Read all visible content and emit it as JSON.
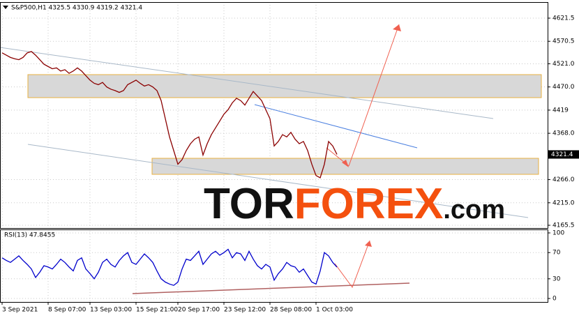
{
  "chart_data": [
    {
      "type": "line",
      "title": "S&P500,H1  4325.5 4330.9 4319.2 4321.4",
      "series": [
        {
          "name": "S&P500",
          "color": "#8b0000",
          "values": [
            4545,
            4540,
            4535,
            4532,
            4530,
            4535,
            4545,
            4548,
            4540,
            4530,
            4520,
            4515,
            4510,
            4512,
            4505,
            4508,
            4500,
            4505,
            4512,
            4505,
            4495,
            4485,
            4478,
            4475,
            4480,
            4470,
            4465,
            4462,
            4458,
            4462,
            4475,
            4480,
            4485,
            4478,
            4472,
            4475,
            4470,
            4462,
            4440,
            4400,
            4360,
            4330,
            4300,
            4310,
            4330,
            4345,
            4355,
            4360,
            4320,
            4345,
            4365,
            4380,
            4395,
            4410,
            4420,
            4435,
            4445,
            4440,
            4430,
            4445,
            4460,
            4450,
            4440,
            4420,
            4400,
            4340,
            4350,
            4365,
            4360,
            4370,
            4355,
            4345,
            4350,
            4330,
            4300,
            4275,
            4270,
            4300,
            4350,
            4340,
            4321.4
          ]
        }
      ],
      "ylim": [
        4159.4,
        4656.8
      ],
      "yticks": [
        4621.5,
        4570.5,
        {
          "value": 4521,
          "label": "4521.0"
        },
        {
          "value": 4470,
          "label": "4470.0"
        },
        4419,
        {
          "value": 4368,
          "label": "4368.0"
        },
        {
          "value": 4266,
          "label": "4266.0"
        },
        {
          "value": 4215,
          "label": "4215.0"
        },
        4165.5
      ],
      "grid": true
    },
    {
      "type": "line",
      "title": "RSI(13) 47.8455",
      "categories": [
        "3 Sep 2021",
        null,
        null,
        null,
        null,
        null,
        null,
        null,
        null,
        null,
        null,
        "8 Sep 07:00",
        null,
        null,
        null,
        null,
        null,
        null,
        null,
        null,
        null,
        "13 Sep 03:00",
        null,
        null,
        null,
        null,
        null,
        null,
        null,
        null,
        null,
        null,
        "15 Sep 21:00",
        null,
        null,
        null,
        null,
        null,
        null,
        null,
        null,
        null,
        "20 Sep 17:00",
        null,
        null,
        null,
        null,
        null,
        null,
        null,
        null,
        null,
        null,
        "23 Sep 12:00",
        null,
        null,
        null,
        null,
        null,
        null,
        null,
        null,
        null,
        null,
        "28 Sep 08:00",
        null,
        null,
        null,
        null,
        null,
        null,
        null,
        null,
        null,
        null,
        "1 Oct 03:00",
        null,
        null,
        null,
        null,
        null
      ],
      "series": [
        {
          "name": "RSI(13)",
          "color": "#0000cc",
          "values": [
            62,
            58,
            55,
            60,
            65,
            58,
            52,
            45,
            32,
            40,
            50,
            48,
            45,
            52,
            60,
            55,
            48,
            42,
            58,
            62,
            45,
            38,
            30,
            40,
            55,
            60,
            52,
            48,
            58,
            65,
            70,
            55,
            52,
            60,
            68,
            62,
            55,
            42,
            30,
            25,
            22,
            20,
            25,
            45,
            60,
            58,
            65,
            72,
            52,
            60,
            68,
            72,
            66,
            70,
            75,
            62,
            70,
            68,
            58,
            72,
            60,
            50,
            45,
            52,
            48,
            28,
            38,
            45,
            55,
            50,
            48,
            40,
            45,
            35,
            25,
            22,
            42,
            70,
            65,
            55,
            47.8455
          ]
        }
      ],
      "ylim": [
        -5.3,
        105.3
      ],
      "yticks": [
        100,
        70,
        30,
        0
      ],
      "grid": true
    }
  ],
  "watermark": {
    "part1": "TOR",
    "part2": "FOREX",
    "part3": ".com"
  }
}
